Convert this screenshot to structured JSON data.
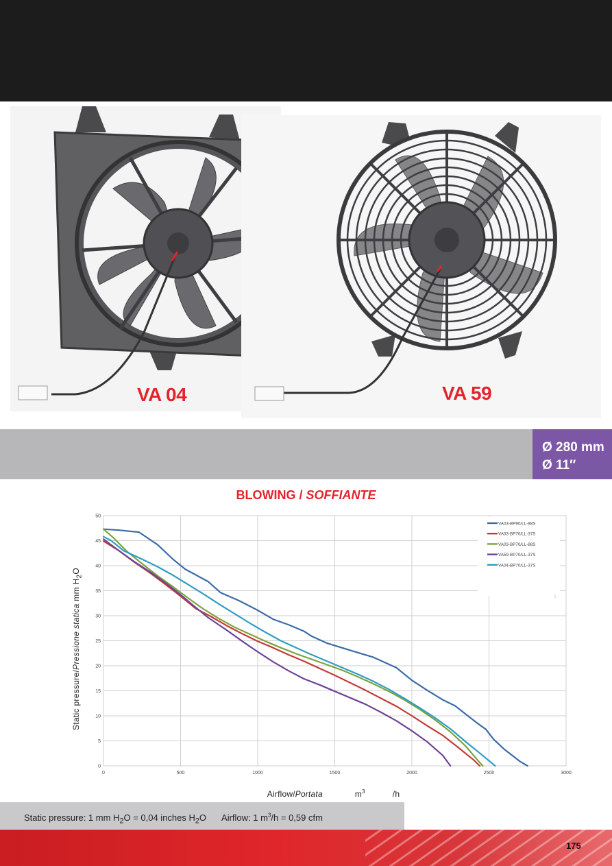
{
  "products": [
    {
      "model": "VA 04"
    },
    {
      "model": "VA 59"
    }
  ],
  "size_badge": {
    "line1": "Ø 280 mm",
    "line2": "Ø 11″"
  },
  "section_title": {
    "main": "BLOWING / ",
    "italic": "SOFFIANTE"
  },
  "y_axis_label": {
    "main": "Static pressure/",
    "italic": "Pressione statica",
    "unit": " mm H",
    "sub": "2",
    "unit_end": "O"
  },
  "x_axis_label": {
    "main": "Airflow/",
    "italic": "Portata",
    "unit": "m",
    "sup": "3",
    "unit_end": "/h"
  },
  "conversion_note": {
    "pressure": {
      "a": "Static pressure: 1 mm H",
      "sub1": "2",
      "b": "O = 0,04 inches H",
      "sub2": "2",
      "c": "O"
    },
    "airflow": {
      "a": "Airflow: 1 m",
      "sup": "3",
      "b": "/h = 0,59 cfm"
    }
  },
  "page_number": "175",
  "colors": {
    "accent_red": "#e3242b",
    "badge_purple": "#7b57a6",
    "band_grey": "#b7b7b9"
  },
  "chart_data": {
    "type": "line",
    "xlim": [
      0,
      3000
    ],
    "ylim": [
      0,
      50
    ],
    "x_ticks": [
      "0",
      "500",
      "1000",
      "1500",
      "2000",
      "2500",
      "3000"
    ],
    "y_ticks": [
      "0",
      "5",
      "10",
      "15",
      "20",
      "25",
      "30",
      "35",
      "40",
      "45",
      "50"
    ],
    "grid": true,
    "legend_position": "top-right",
    "series": [
      {
        "name": "VA03-BP90/LL-88S",
        "color": "#3a6ba8",
        "points": [
          [
            0,
            47.3
          ],
          [
            100,
            47.1
          ],
          [
            230,
            46.7
          ],
          [
            350,
            44.2
          ],
          [
            450,
            41.3
          ],
          [
            530,
            39.3
          ],
          [
            680,
            36.8
          ],
          [
            760,
            34.6
          ],
          [
            880,
            33.0
          ],
          [
            1000,
            31.1
          ],
          [
            1100,
            29.3
          ],
          [
            1200,
            28.2
          ],
          [
            1300,
            26.9
          ],
          [
            1350,
            25.9
          ],
          [
            1450,
            24.5
          ],
          [
            1600,
            23.1
          ],
          [
            1750,
            21.7
          ],
          [
            1850,
            20.3
          ],
          [
            1900,
            19.6
          ],
          [
            2000,
            17.1
          ],
          [
            2100,
            15.1
          ],
          [
            2200,
            13.2
          ],
          [
            2280,
            12.0
          ],
          [
            2350,
            10.3
          ],
          [
            2430,
            8.4
          ],
          [
            2480,
            7.3
          ],
          [
            2530,
            5.3
          ],
          [
            2600,
            3.3
          ],
          [
            2700,
            0.9
          ],
          [
            2750,
            0
          ]
        ]
      },
      {
        "name": "VA03-BP70/LL-37S",
        "color": "#c43a36",
        "points": [
          [
            0,
            44.9
          ],
          [
            100,
            43.0
          ],
          [
            200,
            40.7
          ],
          [
            300,
            38.6
          ],
          [
            400,
            36.3
          ],
          [
            500,
            33.9
          ],
          [
            600,
            31.4
          ],
          [
            700,
            29.8
          ],
          [
            800,
            28.0
          ],
          [
            900,
            26.4
          ],
          [
            1000,
            24.9
          ],
          [
            1100,
            23.6
          ],
          [
            1200,
            22.2
          ],
          [
            1300,
            20.9
          ],
          [
            1400,
            19.5
          ],
          [
            1500,
            18.1
          ],
          [
            1600,
            16.6
          ],
          [
            1700,
            15.1
          ],
          [
            1800,
            13.5
          ],
          [
            1900,
            11.9
          ],
          [
            2000,
            10.0
          ],
          [
            2100,
            8.0
          ],
          [
            2200,
            6.1
          ],
          [
            2300,
            3.7
          ],
          [
            2400,
            1.2
          ],
          [
            2440,
            0
          ]
        ]
      },
      {
        "name": "VA03-BP70/LL-88S",
        "color": "#7aa43d",
        "points": [
          [
            0,
            47.3
          ],
          [
            60,
            45.7
          ],
          [
            150,
            42.9
          ],
          [
            250,
            40.4
          ],
          [
            350,
            38.0
          ],
          [
            450,
            35.8
          ],
          [
            550,
            33.5
          ],
          [
            650,
            31.3
          ],
          [
            750,
            29.4
          ],
          [
            850,
            27.7
          ],
          [
            950,
            26.3
          ],
          [
            1050,
            24.9
          ],
          [
            1150,
            23.6
          ],
          [
            1250,
            22.4
          ],
          [
            1350,
            21.3
          ],
          [
            1450,
            20.2
          ],
          [
            1550,
            19.1
          ],
          [
            1650,
            17.8
          ],
          [
            1750,
            16.4
          ],
          [
            1850,
            14.9
          ],
          [
            1950,
            13.2
          ],
          [
            2050,
            11.3
          ],
          [
            2150,
            9.2
          ],
          [
            2250,
            6.8
          ],
          [
            2350,
            3.9
          ],
          [
            2430,
            1.0
          ],
          [
            2460,
            0
          ]
        ]
      },
      {
        "name": "VA59-BP70/LL-37S",
        "color": "#6c4496",
        "points": [
          [
            0,
            45.3
          ],
          [
            100,
            43.0
          ],
          [
            200,
            40.8
          ],
          [
            300,
            38.8
          ],
          [
            400,
            36.6
          ],
          [
            500,
            34.2
          ],
          [
            600,
            31.6
          ],
          [
            680,
            29.6
          ],
          [
            800,
            27.1
          ],
          [
            900,
            24.9
          ],
          [
            1000,
            22.8
          ],
          [
            1100,
            20.8
          ],
          [
            1200,
            19.0
          ],
          [
            1300,
            17.4
          ],
          [
            1400,
            16.2
          ],
          [
            1500,
            14.9
          ],
          [
            1600,
            13.6
          ],
          [
            1700,
            12.3
          ],
          [
            1800,
            10.7
          ],
          [
            1900,
            9.0
          ],
          [
            2000,
            7.0
          ],
          [
            2100,
            4.8
          ],
          [
            2200,
            2.1
          ],
          [
            2250,
            0
          ]
        ]
      },
      {
        "name": "VA04-BP70/LL-37S",
        "color": "#2f9dc2",
        "points": [
          [
            0,
            45.8
          ],
          [
            50,
            45.0
          ],
          [
            130,
            43.0
          ],
          [
            250,
            41.3
          ],
          [
            350,
            39.8
          ],
          [
            450,
            38.1
          ],
          [
            550,
            36.2
          ],
          [
            650,
            34.3
          ],
          [
            750,
            32.3
          ],
          [
            850,
            30.4
          ],
          [
            950,
            28.5
          ],
          [
            1050,
            26.7
          ],
          [
            1150,
            25.0
          ],
          [
            1250,
            23.6
          ],
          [
            1350,
            22.2
          ],
          [
            1450,
            20.9
          ],
          [
            1550,
            19.6
          ],
          [
            1650,
            18.3
          ],
          [
            1750,
            16.9
          ],
          [
            1850,
            15.3
          ],
          [
            1950,
            13.5
          ],
          [
            2050,
            11.6
          ],
          [
            2150,
            9.6
          ],
          [
            2250,
            7.4
          ],
          [
            2350,
            4.8
          ],
          [
            2450,
            2.3
          ],
          [
            2540,
            0
          ]
        ]
      }
    ]
  }
}
